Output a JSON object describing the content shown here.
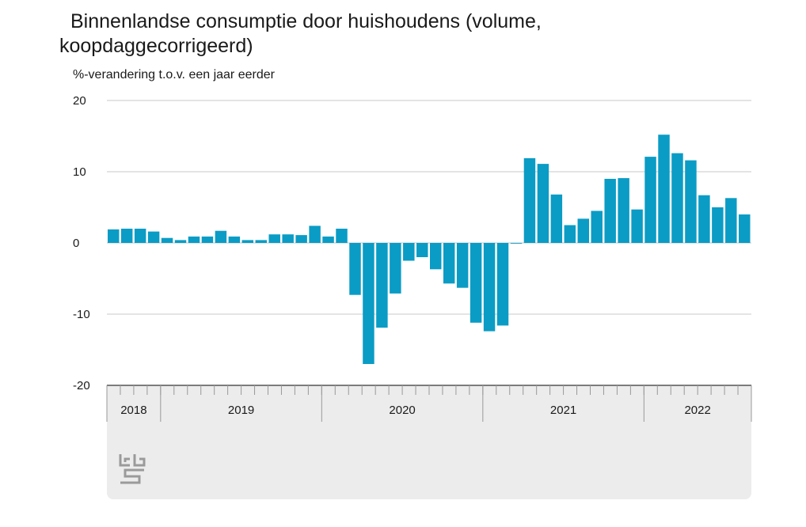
{
  "title": "Binnenlandse consumptie door huishoudens (volume, koopdaggecorrigeerd)",
  "ylabel": "%-verandering t.o.v. een jaar eerder",
  "colors": {
    "bar": "#0a9cc5",
    "grid": "#c8c8c8",
    "panel": "#ececec",
    "axis": "#555555"
  },
  "logo_icon": "cbs-logo-icon",
  "chart_data": {
    "type": "bar",
    "title": "Binnenlandse consumptie door huishoudens (volume, koopdaggecorrigeerd)",
    "ylabel": "%-verandering t.o.v. een jaar eerder",
    "xlabel": "",
    "ylim": [
      -20,
      20
    ],
    "yticks": [
      "20",
      "10",
      "0",
      "-10",
      "-20"
    ],
    "grid": true,
    "year_labels": [
      {
        "label": "2018",
        "start": 0,
        "count": 4
      },
      {
        "label": "2019",
        "start": 4,
        "count": 12
      },
      {
        "label": "2020",
        "start": 16,
        "count": 12
      },
      {
        "label": "2021",
        "start": 28,
        "count": 12
      },
      {
        "label": "2022",
        "start": 40,
        "count": 8
      }
    ],
    "categories": [
      "2018-09",
      "2018-10",
      "2018-11",
      "2018-12",
      "2019-01",
      "2019-02",
      "2019-03",
      "2019-04",
      "2019-05",
      "2019-06",
      "2019-07",
      "2019-08",
      "2019-09",
      "2019-10",
      "2019-11",
      "2019-12",
      "2020-01",
      "2020-02",
      "2020-03",
      "2020-04",
      "2020-05",
      "2020-06",
      "2020-07",
      "2020-08",
      "2020-09",
      "2020-10",
      "2020-11",
      "2020-12",
      "2021-01",
      "2021-02",
      "2021-03",
      "2021-04",
      "2021-05",
      "2021-06",
      "2021-07",
      "2021-08",
      "2021-09",
      "2021-10",
      "2021-11",
      "2021-12",
      "2022-01",
      "2022-02",
      "2022-03",
      "2022-04",
      "2022-05",
      "2022-06",
      "2022-07",
      "2022-08"
    ],
    "values": [
      1.9,
      2.0,
      2.0,
      1.6,
      0.7,
      0.4,
      0.9,
      0.9,
      1.7,
      0.9,
      0.4,
      0.4,
      1.2,
      1.2,
      1.1,
      2.4,
      0.9,
      2.0,
      -7.3,
      -17.0,
      -11.9,
      -7.1,
      -2.5,
      -2.0,
      -3.7,
      -5.7,
      -6.3,
      -11.2,
      -12.4,
      -11.6,
      -0.1,
      11.9,
      11.1,
      6.8,
      2.5,
      3.4,
      4.5,
      9.0,
      9.1,
      4.7,
      12.1,
      15.2,
      12.6,
      11.6,
      6.7,
      5.0,
      6.3,
      4.0
    ]
  }
}
